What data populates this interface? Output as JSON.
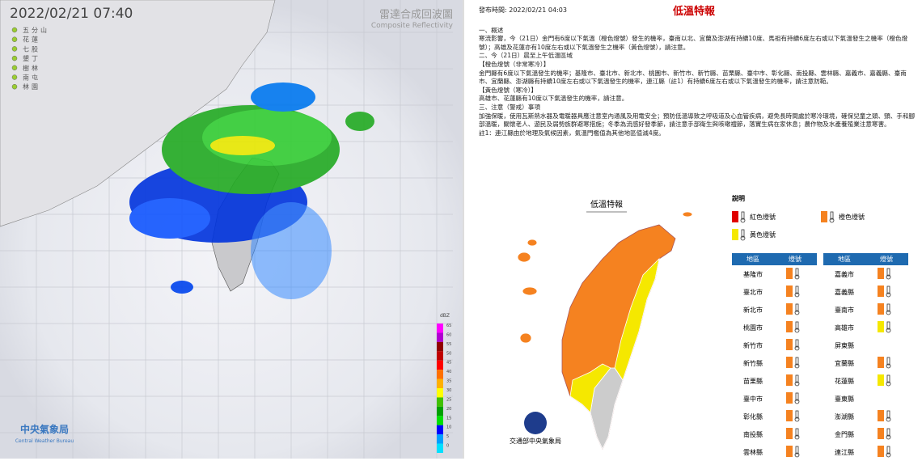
{
  "radar": {
    "timestamp": "2022/02/21  07:40",
    "title": "雷達合成回波圖",
    "subtitle": "Composite Reflectivity",
    "stations": [
      "五分山",
      "花蓮",
      "七股",
      "墾丁",
      "樹林",
      "南屯",
      "林園"
    ],
    "colorbar": {
      "unit": "dBZ",
      "ticks": [
        65,
        60,
        55,
        50,
        45,
        40,
        35,
        30,
        25,
        20,
        15,
        10,
        5,
        0
      ],
      "colors": [
        "#ff00ff",
        "#b000d0",
        "#900000",
        "#c00000",
        "#ff0000",
        "#ff7000",
        "#ffb000",
        "#ffff00",
        "#40c000",
        "#00a000",
        "#00e000",
        "#0000ff",
        "#00a0ff",
        "#00e0ff"
      ]
    },
    "agency": "中央氣象局",
    "agency_en": "Central Weather Bureau"
  },
  "document": {
    "issued": "發布時間: 2022/02/21 04:03",
    "title": "低溫特報",
    "paragraphs": [
      "一、概述",
      "寒流影響，今（21日）金門有6度以下氣溫（橙色燈號）發生的機率，臺南以北、宜蘭及澎湖有持續10度、馬祖有持續6度左右或以下氣溫發生之機率（橙色燈號）；高雄及花蓮亦有10度左右或以下氣溫發生之機率（黃色燈號），請注意。",
      "二、今（21日）晨至上午低溫區域",
      "【橙色燈號（非常寒冷）】",
      "金門縣有6度以下氣溫發生的機率；基隆市、臺北市、新北市、桃園市、新竹市、新竹縣、苗栗縣、臺中市、彰化縣、南投縣、雲林縣、嘉義市、嘉義縣、臺南市、宜蘭縣、澎湖縣有持續10度左右或以下氣溫發生的機率，連江縣（註1）有持續6度左右或以下氣溫發生的機率，請注意防範。",
      "【黃色燈號（寒冷）】",
      "高雄市、花蓮縣有10度以下氣溫發生的機率，請注意。",
      "三、注意（警戒）事項",
      "加強保暖，使用瓦斯熱水器及電暖器具應注意室內通風及用電安全；預防低溫導致之呼吸道及心血管疾病，避免長時間處於寒冷環境，確保兒童之頭、頸、手和腳部溫暖，關懷老人、遊民及弱勢族群避寒措施；冬季為流感好發季節，請注意手部衛生與咳嗽禮節，落實生病在家休息；農作物及水產養殖業注意寒害。",
      "註1：連江縣由於地理及氣候因素，氣溫門檻值為其他地區值減4度。"
    ],
    "map_title": "低溫特報",
    "map_agency": "交通部中央氣象局",
    "legend": {
      "title": "說明",
      "items": [
        {
          "label": "紅色燈號",
          "color": "#e00000"
        },
        {
          "label": "橙色燈號",
          "color": "#f58220"
        },
        {
          "label": "黃色燈號",
          "color": "#f5e800"
        }
      ]
    },
    "table": {
      "headers": [
        "地區",
        "燈號"
      ],
      "left": [
        {
          "region": "基隆市",
          "color": "#f58220"
        },
        {
          "region": "臺北市",
          "color": "#f58220"
        },
        {
          "region": "新北市",
          "color": "#f58220"
        },
        {
          "region": "桃園市",
          "color": "#f58220"
        },
        {
          "region": "新竹市",
          "color": "#f58220"
        },
        {
          "region": "新竹縣",
          "color": "#f58220"
        },
        {
          "region": "苗栗縣",
          "color": "#f58220"
        },
        {
          "region": "臺中市",
          "color": "#f58220"
        },
        {
          "region": "彰化縣",
          "color": "#f58220"
        },
        {
          "region": "南投縣",
          "color": "#f58220"
        },
        {
          "region": "雲林縣",
          "color": "#f58220"
        }
      ],
      "right": [
        {
          "region": "嘉義市",
          "color": "#f58220"
        },
        {
          "region": "嘉義縣",
          "color": "#f58220"
        },
        {
          "region": "臺南市",
          "color": "#f58220"
        },
        {
          "region": "高雄市",
          "color": "#f5e800"
        },
        {
          "region": "屏東縣",
          "color": null
        },
        {
          "region": "宜蘭縣",
          "color": "#f58220"
        },
        {
          "region": "花蓮縣",
          "color": "#f5e800"
        },
        {
          "region": "臺東縣",
          "color": null
        },
        {
          "region": "澎湖縣",
          "color": "#f58220"
        },
        {
          "region": "金門縣",
          "color": "#f58220"
        },
        {
          "region": "連江縣",
          "color": "#f58220"
        }
      ]
    }
  }
}
